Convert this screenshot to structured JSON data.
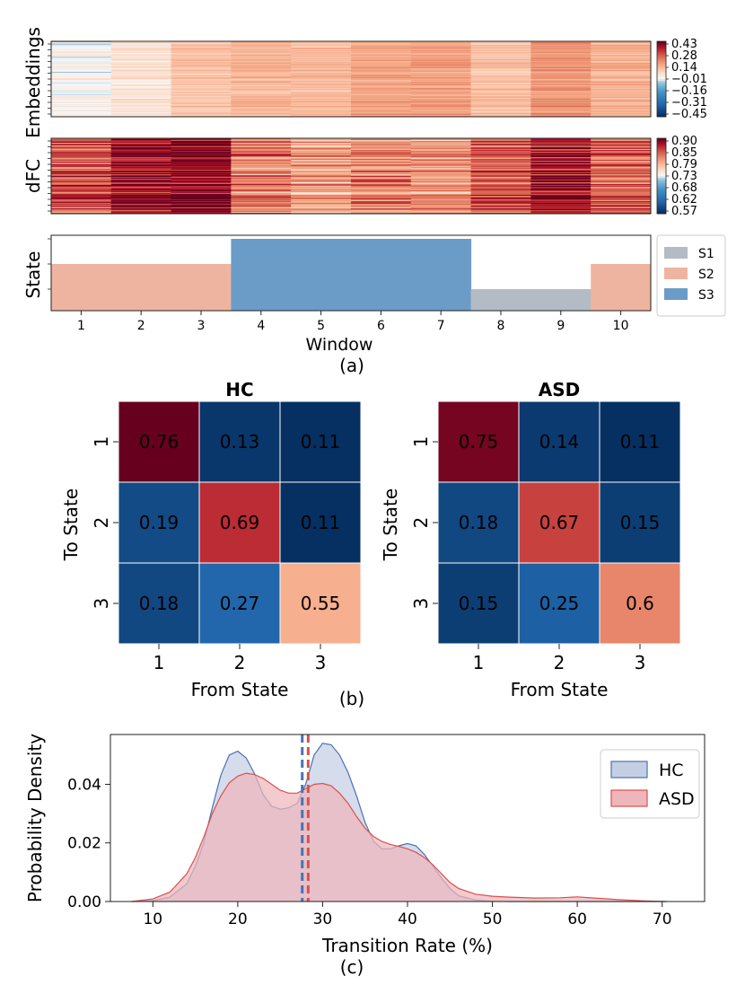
{
  "colors": {
    "heat_low": "#0b3a6e",
    "heat_mid": "#f7f7f7",
    "heat_high": "#67001f",
    "state_S1": "#b3bcc5",
    "state_S2": "#efb4a0",
    "state_S3": "#6b9cc8",
    "kde_hc_line": "#4a72b0",
    "kde_hc_fill": "#c5cfe4",
    "kde_asd_line": "#d9504e",
    "kde_asd_fill": "#eeb5bb"
  },
  "panel_a": {
    "caption": "(a)",
    "embeddings": {
      "ylabel": "Embeddings",
      "colorbar_ticks": [
        "0.43",
        "0.28",
        "0.14",
        "−0.01",
        "−0.16",
        "−0.31",
        "−0.45"
      ],
      "colorbar_range": [
        -0.45,
        0.43
      ],
      "window_means": [
        0.0,
        0.04,
        0.1,
        0.13,
        0.12,
        0.16,
        0.17,
        0.11,
        0.19,
        0.14
      ]
    },
    "dfc": {
      "ylabel": "dFC",
      "colorbar_ticks": [
        "0.90",
        "0.85",
        "0.79",
        "0.73",
        "0.68",
        "0.62",
        "0.57"
      ],
      "colorbar_range": [
        0.57,
        0.9
      ],
      "window_means": [
        0.845,
        0.878,
        0.886,
        0.822,
        0.8,
        0.82,
        0.808,
        0.838,
        0.874,
        0.835
      ]
    },
    "state": {
      "ylabel": "State",
      "xlabel": "Window",
      "windows": [
        "1",
        "2",
        "3",
        "4",
        "5",
        "6",
        "7",
        "8",
        "9",
        "10"
      ],
      "state_sequence": [
        2,
        2,
        2,
        3,
        3,
        3,
        3,
        1,
        1,
        2
      ],
      "legend": [
        "S1",
        "S2",
        "S3"
      ]
    }
  },
  "panel_b": {
    "caption": "(b)",
    "hc": {
      "title": "HC",
      "xlabel": "From State",
      "ylabel": "To State",
      "row_labels": [
        "1",
        "2",
        "3"
      ],
      "col_labels": [
        "1",
        "2",
        "3"
      ],
      "values": [
        [
          "0.76",
          "0.13",
          "0.11"
        ],
        [
          "0.19",
          "0.69",
          "0.11"
        ],
        [
          "0.18",
          "0.27",
          "0.55"
        ]
      ]
    },
    "asd": {
      "title": "ASD",
      "xlabel": "From State",
      "ylabel": "To State",
      "row_labels": [
        "1",
        "2",
        "3"
      ],
      "col_labels": [
        "1",
        "2",
        "3"
      ],
      "values": [
        [
          "0.75",
          "0.14",
          "0.11"
        ],
        [
          "0.18",
          "0.67",
          "0.15"
        ],
        [
          "0.15",
          "0.25",
          "0.6"
        ]
      ]
    }
  },
  "panel_c": {
    "caption": "(c)",
    "chart_data": {
      "type": "area",
      "xlabel": "Transition Rate (%)",
      "ylabel": "Probability Density",
      "x_ticks": [
        "10",
        "20",
        "30",
        "40",
        "50",
        "60",
        "70"
      ],
      "y_ticks": [
        "0.00",
        "0.02",
        "0.04"
      ],
      "xlim": [
        5,
        75
      ],
      "ylim": [
        0,
        0.057
      ],
      "x": [
        7.5,
        10,
        12,
        14,
        15,
        16,
        17,
        18,
        19,
        20,
        21,
        22,
        23,
        24,
        25,
        26,
        27,
        28,
        29,
        30,
        31,
        32,
        33,
        34,
        35,
        36,
        37,
        38,
        39,
        40,
        41,
        42,
        43,
        44,
        45,
        46,
        48,
        50,
        52,
        55,
        58,
        60,
        62,
        65,
        68,
        70.5
      ],
      "series": [
        {
          "name": "HC",
          "mean": 27.6,
          "values": [
            0,
            0.0003,
            0.0015,
            0.006,
            0.012,
            0.02,
            0.032,
            0.043,
            0.05,
            0.0513,
            0.049,
            0.0435,
            0.0365,
            0.0325,
            0.0315,
            0.032,
            0.0335,
            0.04,
            0.05,
            0.054,
            0.0535,
            0.05,
            0.044,
            0.036,
            0.027,
            0.0205,
            0.018,
            0.018,
            0.019,
            0.0198,
            0.019,
            0.016,
            0.012,
            0.008,
            0.0045,
            0.002,
            0.0005,
            0.0001,
            0,
            0,
            0,
            0,
            0,
            0,
            0,
            0
          ]
        },
        {
          "name": "ASD",
          "mean": 28.3,
          "values": [
            0,
            0.0009,
            0.0032,
            0.0095,
            0.015,
            0.022,
            0.03,
            0.036,
            0.0405,
            0.0428,
            0.0438,
            0.0433,
            0.042,
            0.04,
            0.038,
            0.037,
            0.037,
            0.0385,
            0.04,
            0.0403,
            0.0395,
            0.037,
            0.0335,
            0.029,
            0.025,
            0.0222,
            0.0205,
            0.0195,
            0.0188,
            0.018,
            0.0168,
            0.015,
            0.0125,
            0.0095,
            0.0065,
            0.0045,
            0.0025,
            0.0018,
            0.0015,
            0.0012,
            0.0013,
            0.0016,
            0.0012,
            0.0006,
            0.0002,
            0
          ]
        }
      ],
      "legend": [
        "HC",
        "ASD"
      ]
    }
  }
}
